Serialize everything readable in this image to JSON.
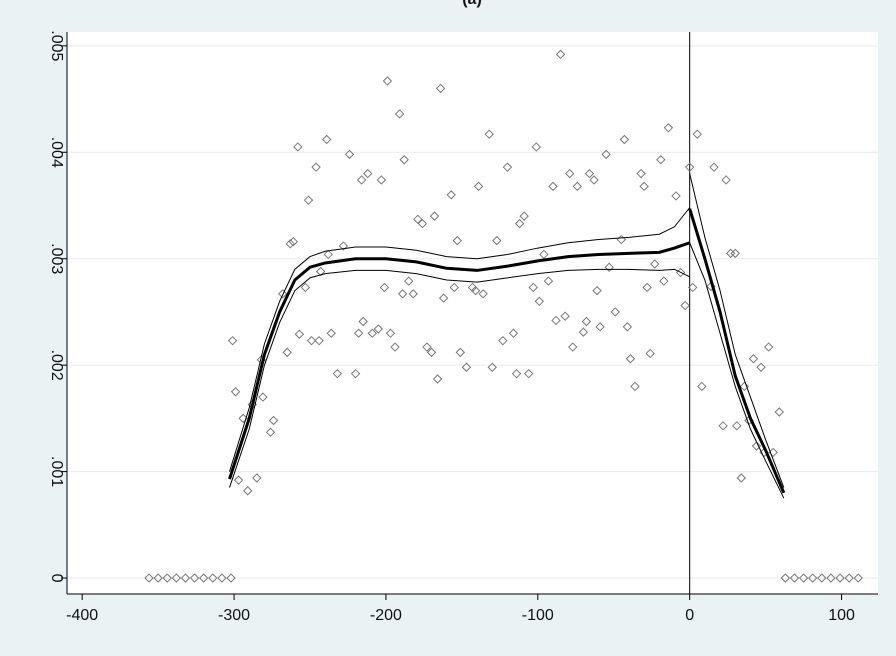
{
  "chart_data": {
    "type": "scatter",
    "title": "(a)",
    "xlim": [
      -410,
      124
    ],
    "ylim": [
      -0.00015,
      0.00513
    ],
    "xticks": [
      -400,
      -300,
      -200,
      -100,
      0,
      100
    ],
    "yticks": [
      0,
      {
        "value": 0.001,
        "label": ".001"
      },
      {
        "value": 0.002,
        "label": ".002"
      },
      {
        "value": 0.003,
        "label": ".003"
      },
      {
        "value": 0.004,
        "label": ".004"
      },
      {
        "value": 0.005,
        "label": ".005"
      }
    ],
    "grid": true,
    "vline": 0,
    "series": [
      {
        "type": "scatter",
        "color": "#777777",
        "x": [
          -356,
          -350,
          -344,
          -338,
          -332,
          -326,
          -320,
          -314,
          -308,
          -302,
          63,
          69,
          75,
          81,
          87,
          93,
          99,
          105,
          111,
          -301,
          -299,
          -297,
          -294,
          -291,
          -288,
          -285,
          -282,
          -281,
          -276,
          -274,
          -268,
          -265,
          -263,
          -261,
          -258,
          -257,
          -253,
          -251,
          -249,
          -246,
          -244,
          -243,
          -239,
          -238,
          -236,
          -232,
          -228,
          -224,
          -220,
          -218,
          -216,
          -215,
          -212,
          -209,
          -205,
          -203,
          -201,
          -199,
          -197,
          -194,
          -191,
          -189,
          -188,
          -185,
          -182,
          -179,
          -176,
          -173,
          -170,
          -168,
          -166,
          -164,
          -162,
          -157,
          -155,
          -153,
          -151,
          -147,
          -143,
          -141,
          -139,
          -136,
          -132,
          -130,
          -127,
          -123,
          -120,
          -116,
          -114,
          -112,
          -109,
          -106,
          -103,
          -101,
          -99,
          -96,
          -93,
          -90,
          -88,
          -85,
          -82,
          -79,
          -77,
          -74,
          -70,
          -68,
          -66,
          -63,
          -61,
          -59,
          -55,
          -53,
          -49,
          -45,
          -43,
          -41,
          -39,
          -36,
          -32,
          -30,
          -28,
          -26,
          -23,
          -19,
          -17,
          -14,
          -9,
          -6,
          -3,
          0,
          2,
          5,
          8,
          14,
          16,
          22,
          24,
          27,
          30,
          31,
          34,
          36,
          39,
          42,
          44,
          47,
          49,
          52,
          55,
          59
        ],
        "values": [
          0,
          0,
          0,
          0,
          0,
          0,
          0,
          0,
          0,
          0,
          0,
          0,
          0,
          0,
          0,
          0,
          0,
          0,
          0,
          0.00223,
          0.00175,
          0.00092,
          0.0015,
          0.00082,
          0.00163,
          0.00094,
          0.00205,
          0.0017,
          0.00137,
          0.00148,
          0.00267,
          0.00212,
          0.00314,
          0.00316,
          0.00405,
          0.00229,
          0.00273,
          0.00355,
          0.00223,
          0.00386,
          0.00223,
          0.00288,
          0.00412,
          0.00304,
          0.0023,
          0.00192,
          0.00312,
          0.00398,
          0.00192,
          0.0023,
          0.00374,
          0.00241,
          0.0038,
          0.0023,
          0.00234,
          0.00374,
          0.00273,
          0.00467,
          0.0023,
          0.00217,
          0.00436,
          0.00267,
          0.00393,
          0.00279,
          0.00267,
          0.00337,
          0.00333,
          0.00217,
          0.00212,
          0.0034,
          0.00187,
          0.0046,
          0.00263,
          0.0036,
          0.00273,
          0.00317,
          0.00212,
          0.00198,
          0.00273,
          0.0027,
          0.00368,
          0.00267,
          0.00417,
          0.00198,
          0.00317,
          0.00223,
          0.00386,
          0.0023,
          0.00192,
          0.00333,
          0.0034,
          0.00192,
          0.00273,
          0.00405,
          0.0026,
          0.00304,
          0.00279,
          0.00368,
          0.00242,
          0.00492,
          0.00246,
          0.0038,
          0.00217,
          0.00368,
          0.00231,
          0.00241,
          0.0038,
          0.00374,
          0.0027,
          0.00236,
          0.00398,
          0.00292,
          0.0025,
          0.00318,
          0.00412,
          0.00236,
          0.00206,
          0.0018,
          0.0038,
          0.00368,
          0.00273,
          0.00211,
          0.00295,
          0.00393,
          0.00279,
          0.00423,
          0.00359,
          0.00287,
          0.00256,
          0.00386,
          0.00273,
          0.00417,
          0.0018,
          0.00274,
          0.00386,
          0.00143,
          0.00374,
          0.00305,
          0.00305,
          0.00143,
          0.00094,
          0.0018,
          0.00148,
          0.00206,
          0.00124,
          0.00198,
          0.00118,
          0.00217,
          0.00118,
          0.00156
        ]
      },
      {
        "type": "line",
        "color": "#000000",
        "width": 3,
        "x": [
          -303,
          -290,
          -280,
          -270,
          -260,
          -250,
          -240,
          -220,
          -200,
          -180,
          -160,
          -140,
          -120,
          -100,
          -80,
          -60,
          -40,
          -20,
          -10,
          0
        ],
        "values": [
          0.00093,
          0.0015,
          0.0021,
          0.0025,
          0.0028,
          0.00292,
          0.00296,
          0.003,
          0.003,
          0.00297,
          0.00291,
          0.00289,
          0.00293,
          0.00298,
          0.00302,
          0.00304,
          0.00305,
          0.00306,
          0.0031,
          0.00315
        ]
      },
      {
        "type": "line",
        "color": "#000000",
        "width": 1,
        "x": [
          -303,
          -290,
          -280,
          -270,
          -260,
          -250,
          -240,
          -220,
          -200,
          -180,
          -160,
          -140,
          -120,
          -100,
          -80,
          -60,
          -40,
          -20,
          -10,
          0
        ],
        "values": [
          0.001,
          0.0016,
          0.0022,
          0.0026,
          0.0029,
          0.00302,
          0.00307,
          0.00311,
          0.00311,
          0.00308,
          0.00302,
          0.003,
          0.00304,
          0.0031,
          0.00315,
          0.00318,
          0.0032,
          0.00323,
          0.0033,
          0.00348
        ]
      },
      {
        "type": "line",
        "color": "#000000",
        "width": 1,
        "x": [
          -303,
          -290,
          -280,
          -270,
          -260,
          -250,
          -240,
          -220,
          -200,
          -180,
          -160,
          -140,
          -120,
          -100,
          -80,
          -60,
          -40,
          -20,
          -10,
          0
        ],
        "values": [
          0.00085,
          0.0014,
          0.002,
          0.0024,
          0.0027,
          0.00282,
          0.00286,
          0.00289,
          0.00289,
          0.00286,
          0.0028,
          0.00278,
          0.00282,
          0.00286,
          0.00289,
          0.0029,
          0.0029,
          0.00289,
          0.0029,
          0.00283
        ]
      },
      {
        "type": "line",
        "color": "#000000",
        "width": 3,
        "x": [
          0,
          10,
          20,
          30,
          40,
          50,
          62
        ],
        "values": [
          0.00347,
          0.003,
          0.0025,
          0.0019,
          0.0015,
          0.0012,
          0.0008
        ]
      },
      {
        "type": "line",
        "color": "#000000",
        "width": 1,
        "x": [
          0,
          10,
          20,
          30,
          40,
          50,
          62
        ],
        "values": [
          0.0038,
          0.0032,
          0.0027,
          0.0021,
          0.0017,
          0.0013,
          0.00085
        ]
      },
      {
        "type": "line",
        "color": "#000000",
        "width": 1,
        "x": [
          0,
          10,
          20,
          30,
          40,
          50,
          62
        ],
        "values": [
          0.00315,
          0.0028,
          0.0023,
          0.0018,
          0.0014,
          0.0011,
          0.00075
        ]
      }
    ]
  }
}
